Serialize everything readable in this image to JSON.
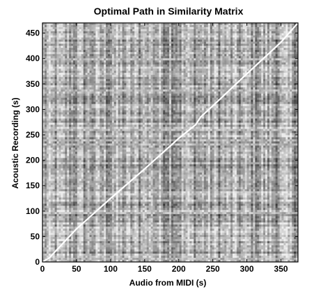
{
  "chart_data": {
    "type": "heatmap",
    "title": "Optimal Path in Similarity Matrix",
    "xlabel": "Audio from MIDI (s)",
    "ylabel": "Acoustic Recording (s)",
    "xlim": [
      0,
      375
    ],
    "ylim": [
      0,
      470
    ],
    "xticks": [
      0,
      50,
      100,
      150,
      200,
      250,
      300,
      350
    ],
    "yticks": [
      0,
      50,
      100,
      150,
      200,
      250,
      300,
      350,
      400,
      450
    ],
    "colormap": "grayscale",
    "path": {
      "name": "optimal path",
      "color": "#ffffff",
      "x": [
        0,
        10,
        50,
        100,
        150,
        200,
        225,
        232,
        250,
        300,
        350,
        375
      ],
      "y": [
        0,
        8,
        65,
        125,
        183,
        243,
        270,
        285,
        307,
        370,
        432,
        470
      ]
    },
    "bright_columns": [
      6,
      68,
      104,
      148,
      160,
      188,
      210,
      310
    ],
    "bright_rows": [
      5,
      95,
      232,
      240,
      258,
      338,
      400
    ]
  }
}
